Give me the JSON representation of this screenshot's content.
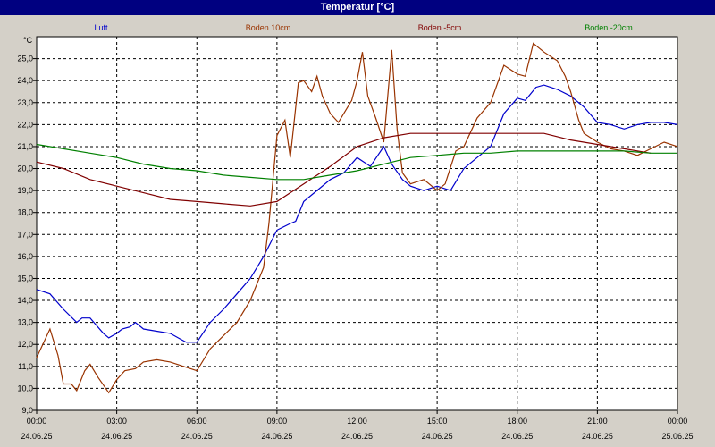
{
  "window": {
    "title": "Temperatur [°C]"
  },
  "chart_data": {
    "type": "line",
    "title": "Temperatur [°C]",
    "ylabel": "°C",
    "ylim": [
      9.0,
      26.0
    ],
    "yticks": [
      "9,0",
      "10,0",
      "11,0",
      "12,0",
      "13,0",
      "14,0",
      "15,0",
      "16,0",
      "17,0",
      "18,0",
      "19,0",
      "20,0",
      "21,0",
      "22,0",
      "23,0",
      "24,0",
      "25,0"
    ],
    "xlim": [
      0,
      24
    ],
    "xticks": [
      {
        "time": "00:00",
        "date": "24.06.25",
        "h": 0
      },
      {
        "time": "03:00",
        "date": "24.06.25",
        "h": 3
      },
      {
        "time": "06:00",
        "date": "24.06.25",
        "h": 6
      },
      {
        "time": "09:00",
        "date": "24.06.25",
        "h": 9
      },
      {
        "time": "12:00",
        "date": "24.06.25",
        "h": 12
      },
      {
        "time": "15:00",
        "date": "24.06.25",
        "h": 15
      },
      {
        "time": "18:00",
        "date": "24.06.25",
        "h": 18
      },
      {
        "time": "21:00",
        "date": "24.06.25",
        "h": 21
      },
      {
        "time": "00:00",
        "date": "25.06.25",
        "h": 24
      }
    ],
    "grid": true,
    "legend": "top",
    "series": [
      {
        "name": "Luft",
        "color": "#0000cc",
        "points": [
          [
            0,
            14.5
          ],
          [
            0.5,
            14.3
          ],
          [
            1,
            13.6
          ],
          [
            1.5,
            13.0
          ],
          [
            1.7,
            13.2
          ],
          [
            2,
            13.2
          ],
          [
            2.5,
            12.5
          ],
          [
            2.7,
            12.3
          ],
          [
            3,
            12.5
          ],
          [
            3.2,
            12.7
          ],
          [
            3.5,
            12.8
          ],
          [
            3.7,
            13.0
          ],
          [
            4,
            12.7
          ],
          [
            4.5,
            12.6
          ],
          [
            5,
            12.5
          ],
          [
            5.3,
            12.3
          ],
          [
            5.6,
            12.1
          ],
          [
            6,
            12.1
          ],
          [
            6.5,
            13.0
          ],
          [
            7,
            13.6
          ],
          [
            7.5,
            14.3
          ],
          [
            8,
            15.0
          ],
          [
            8.5,
            16.0
          ],
          [
            9,
            17.2
          ],
          [
            9.5,
            17.5
          ],
          [
            9.7,
            17.6
          ],
          [
            10,
            18.5
          ],
          [
            10.5,
            19.0
          ],
          [
            11,
            19.5
          ],
          [
            11.5,
            19.8
          ],
          [
            12,
            20.5
          ],
          [
            12.5,
            20.1
          ],
          [
            13,
            21.0
          ],
          [
            13.3,
            20.2
          ],
          [
            13.7,
            19.5
          ],
          [
            14,
            19.2
          ],
          [
            14.5,
            19.0
          ],
          [
            15,
            19.2
          ],
          [
            15.5,
            19.0
          ],
          [
            16,
            20.0
          ],
          [
            16.5,
            20.5
          ],
          [
            17,
            21.0
          ],
          [
            17.5,
            22.5
          ],
          [
            18,
            23.2
          ],
          [
            18.3,
            23.1
          ],
          [
            18.7,
            23.7
          ],
          [
            19,
            23.8
          ],
          [
            19.5,
            23.6
          ],
          [
            20,
            23.3
          ],
          [
            20.5,
            22.8
          ],
          [
            21,
            22.1
          ],
          [
            21.5,
            22.0
          ],
          [
            22,
            21.8
          ],
          [
            22.5,
            22.0
          ],
          [
            23,
            22.1
          ],
          [
            23.5,
            22.1
          ],
          [
            24,
            22.0
          ]
        ]
      },
      {
        "name": "Boden 10cm",
        "color": "#993300",
        "points": [
          [
            0,
            11.4
          ],
          [
            0.5,
            12.7
          ],
          [
            0.8,
            11.5
          ],
          [
            1,
            10.2
          ],
          [
            1.3,
            10.2
          ],
          [
            1.5,
            9.9
          ],
          [
            1.8,
            10.8
          ],
          [
            2,
            11.1
          ],
          [
            2.3,
            10.5
          ],
          [
            2.7,
            9.8
          ],
          [
            3,
            10.4
          ],
          [
            3.3,
            10.8
          ],
          [
            3.7,
            10.9
          ],
          [
            4,
            11.2
          ],
          [
            4.5,
            11.3
          ],
          [
            5,
            11.2
          ],
          [
            5.5,
            11.0
          ],
          [
            6,
            10.8
          ],
          [
            6.5,
            11.8
          ],
          [
            7,
            12.4
          ],
          [
            7.5,
            13.0
          ],
          [
            8,
            14.0
          ],
          [
            8.5,
            15.5
          ],
          [
            8.7,
            17.5
          ],
          [
            9,
            21.5
          ],
          [
            9.3,
            22.2
          ],
          [
            9.5,
            20.5
          ],
          [
            9.8,
            23.9
          ],
          [
            10,
            24.0
          ],
          [
            10.3,
            23.5
          ],
          [
            10.5,
            24.2
          ],
          [
            10.7,
            23.3
          ],
          [
            11,
            22.5
          ],
          [
            11.3,
            22.1
          ],
          [
            11.5,
            22.5
          ],
          [
            11.8,
            23.1
          ],
          [
            12,
            24.0
          ],
          [
            12.2,
            25.3
          ],
          [
            12.4,
            23.3
          ],
          [
            12.7,
            22.3
          ],
          [
            13,
            21.2
          ],
          [
            13.3,
            25.4
          ],
          [
            13.5,
            21.8
          ],
          [
            13.7,
            19.8
          ],
          [
            14,
            19.3
          ],
          [
            14.5,
            19.5
          ],
          [
            15,
            19.0
          ],
          [
            15.3,
            19.3
          ],
          [
            15.7,
            20.8
          ],
          [
            16,
            21.0
          ],
          [
            16.5,
            22.3
          ],
          [
            17,
            23.0
          ],
          [
            17.5,
            24.7
          ],
          [
            18,
            24.3
          ],
          [
            18.3,
            24.2
          ],
          [
            18.6,
            25.7
          ],
          [
            18.8,
            25.5
          ],
          [
            19,
            25.3
          ],
          [
            19.5,
            24.9
          ],
          [
            19.8,
            24.2
          ],
          [
            20,
            23.5
          ],
          [
            20.3,
            22.2
          ],
          [
            20.5,
            21.6
          ],
          [
            21,
            21.2
          ],
          [
            21.5,
            20.9
          ],
          [
            22,
            20.8
          ],
          [
            22.5,
            20.6
          ],
          [
            23,
            20.9
          ],
          [
            23.5,
            21.2
          ],
          [
            24,
            21.0
          ]
        ]
      },
      {
        "name": "Boden -5cm",
        "color": "#800000",
        "points": [
          [
            0,
            20.3
          ],
          [
            1,
            20.0
          ],
          [
            2,
            19.5
          ],
          [
            3,
            19.2
          ],
          [
            4,
            18.9
          ],
          [
            5,
            18.6
          ],
          [
            6,
            18.5
          ],
          [
            7,
            18.4
          ],
          [
            8,
            18.3
          ],
          [
            9,
            18.5
          ],
          [
            10,
            19.3
          ],
          [
            11,
            20.1
          ],
          [
            12,
            21.0
          ],
          [
            13,
            21.4
          ],
          [
            14,
            21.6
          ],
          [
            15,
            21.6
          ],
          [
            16,
            21.6
          ],
          [
            17,
            21.6
          ],
          [
            18,
            21.6
          ],
          [
            19,
            21.6
          ],
          [
            20,
            21.3
          ],
          [
            21,
            21.1
          ],
          [
            22,
            20.9
          ],
          [
            23,
            20.7
          ]
        ]
      },
      {
        "name": "Boden -20cm",
        "color": "#008000",
        "points": [
          [
            0,
            21.1
          ],
          [
            1,
            20.9
          ],
          [
            2,
            20.7
          ],
          [
            3,
            20.5
          ],
          [
            4,
            20.2
          ],
          [
            5,
            20.0
          ],
          [
            6,
            19.9
          ],
          [
            7,
            19.7
          ],
          [
            8,
            19.6
          ],
          [
            9,
            19.5
          ],
          [
            10,
            19.5
          ],
          [
            11,
            19.7
          ],
          [
            12,
            19.9
          ],
          [
            13,
            20.2
          ],
          [
            14,
            20.5
          ],
          [
            15,
            20.6
          ],
          [
            16,
            20.7
          ],
          [
            17,
            20.7
          ],
          [
            18,
            20.8
          ],
          [
            19,
            20.8
          ],
          [
            20,
            20.8
          ],
          [
            21,
            20.8
          ],
          [
            22,
            20.8
          ],
          [
            23,
            20.7
          ],
          [
            24,
            20.7
          ]
        ]
      }
    ]
  }
}
